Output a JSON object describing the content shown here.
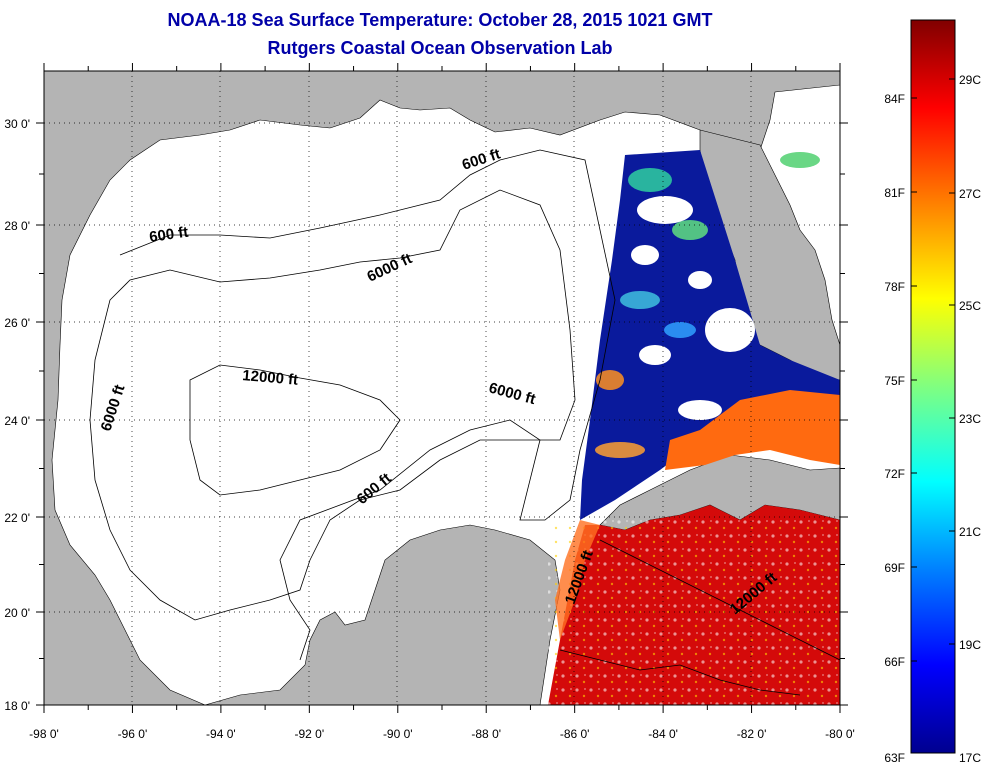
{
  "header": {
    "title": "NOAA-18 Sea Surface Temperature:  October 28, 2015 1021 GMT",
    "subtitle": "Rutgers Coastal Ocean Observation Lab"
  },
  "map": {
    "lon_range": [
      -98,
      -80
    ],
    "lat_range": [
      18,
      31
    ],
    "x_ticks": [
      "-98 0'",
      "-96 0'",
      "-94 0'",
      "-92 0'",
      "-90 0'",
      "-88 0'",
      "-86 0'",
      "-84 0'",
      "-82 0'",
      "-80 0'"
    ],
    "y_ticks": [
      "18 0'",
      "20 0'",
      "22 0'",
      "24 0'",
      "26 0'",
      "28 0'",
      "30 0'"
    ],
    "grid": "dotted",
    "land_color": "#b4b4b4",
    "water_color": "#ffffff",
    "contour_labels": [
      {
        "text": "600 ft"
      },
      {
        "text": "600 ft"
      },
      {
        "text": "6000 ft"
      },
      {
        "text": "6000 ft"
      },
      {
        "text": "12000 ft"
      },
      {
        "text": "6000 ft"
      },
      {
        "text": "600 ft"
      },
      {
        "text": "12000 ft"
      },
      {
        "text": "12000 ft"
      }
    ]
  },
  "colorbar": {
    "colors": [
      "#00008f",
      "#0000ff",
      "#0080ff",
      "#00ffff",
      "#80ff80",
      "#ffff00",
      "#ff8000",
      "#ff0000",
      "#800000"
    ],
    "fahrenheit": [
      "84F",
      "81F",
      "78F",
      "75F",
      "72F",
      "69F",
      "66F",
      "63F"
    ],
    "celsius": [
      "29C",
      "27C",
      "25C",
      "23C",
      "21C",
      "19C",
      "17C"
    ]
  }
}
